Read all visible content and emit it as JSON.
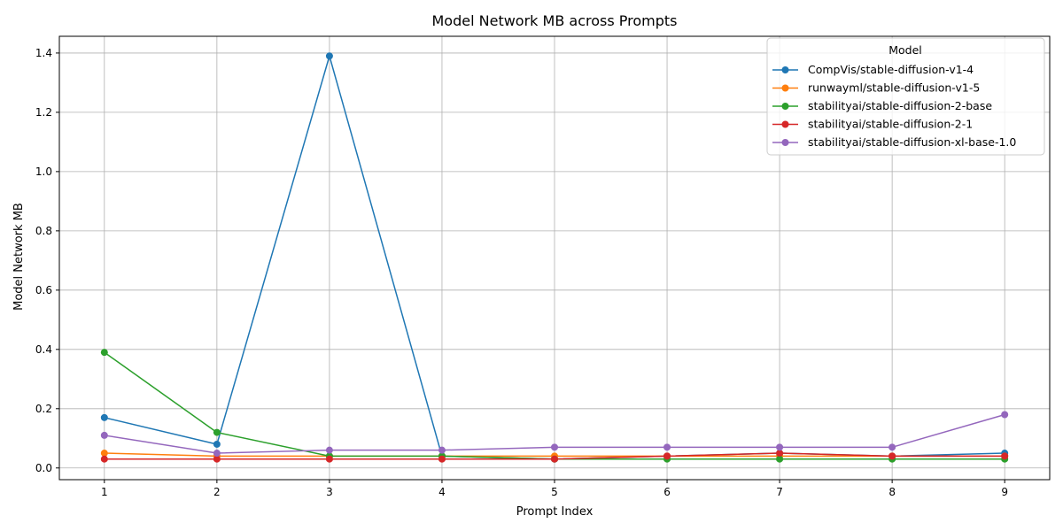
{
  "chart_data": {
    "type": "line",
    "title": "Model Network MB across Prompts",
    "xlabel": "Prompt Index",
    "ylabel": "Model Network MB",
    "x": [
      1,
      2,
      3,
      4,
      5,
      6,
      7,
      8,
      9
    ],
    "xlim": [
      0.6,
      9.4
    ],
    "ylim": [
      -0.0395,
      1.4565
    ],
    "yticks": [
      0.0,
      0.2,
      0.4,
      0.6,
      0.8,
      1.0,
      1.2,
      1.4
    ],
    "ytick_labels": [
      "0.0",
      "0.2",
      "0.4",
      "0.6",
      "0.8",
      "1.0",
      "1.2",
      "1.4"
    ],
    "xticks": [
      1,
      2,
      3,
      4,
      5,
      6,
      7,
      8,
      9
    ],
    "xtick_labels": [
      "1",
      "2",
      "3",
      "4",
      "5",
      "6",
      "7",
      "8",
      "9"
    ],
    "grid": true,
    "legend_title": "Model",
    "legend_position": "top-right",
    "series": [
      {
        "name": "CompVis/stable-diffusion-v1-4",
        "color": "#1f77b4",
        "values": [
          0.17,
          0.08,
          1.39,
          0.04,
          0.03,
          0.04,
          0.05,
          0.04,
          0.05
        ]
      },
      {
        "name": "runwayml/stable-diffusion-v1-5",
        "color": "#ff7f0e",
        "values": [
          0.05,
          0.04,
          0.04,
          0.04,
          0.04,
          0.04,
          0.04,
          0.04,
          0.04
        ]
      },
      {
        "name": "stabilityai/stable-diffusion-2-base",
        "color": "#2ca02c",
        "values": [
          0.39,
          0.12,
          0.04,
          0.04,
          0.03,
          0.03,
          0.03,
          0.03,
          0.03
        ]
      },
      {
        "name": "stabilityai/stable-diffusion-2-1",
        "color": "#d62728",
        "values": [
          0.03,
          0.03,
          0.03,
          0.03,
          0.03,
          0.04,
          0.05,
          0.04,
          0.04
        ]
      },
      {
        "name": "stabilityai/stable-diffusion-xl-base-1.0",
        "color": "#9467bd",
        "values": [
          0.11,
          0.05,
          0.06,
          0.06,
          0.07,
          0.07,
          0.07,
          0.07,
          0.18
        ]
      }
    ]
  }
}
